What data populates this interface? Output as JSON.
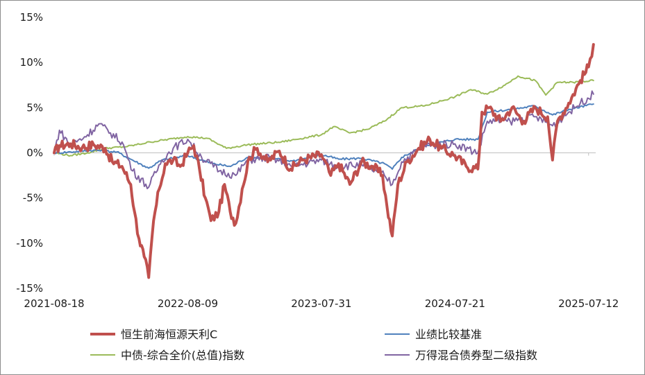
{
  "chart_data": {
    "type": "line",
    "title": "",
    "xlabel": "",
    "ylabel": "",
    "y_ticks": [
      "15%",
      "10%",
      "5%",
      "0%",
      "-5%",
      "-10%",
      "-15%"
    ],
    "y_tick_values": [
      15,
      10,
      5,
      0,
      -5,
      -10,
      -15
    ],
    "ylim": [
      -15,
      15
    ],
    "x_ticks": [
      "2021-08-18",
      "2022-08-09",
      "2023-07-31",
      "2024-07-21",
      "2025-07-12"
    ],
    "xlim": [
      "2021-08-18",
      "2025-07-31"
    ],
    "grid": false,
    "legend_position": "bottom",
    "series": [
      {
        "name": "恒生前海恒源天利C",
        "color": "#c0504d",
        "points": [
          [
            "2021-08-18",
            0.0
          ],
          [
            "2021-09-01",
            0.8
          ],
          [
            "2021-10-01",
            1.0
          ],
          [
            "2021-11-01",
            0.6
          ],
          [
            "2021-12-01",
            0.9
          ],
          [
            "2022-01-01",
            0.5
          ],
          [
            "2022-01-20",
            -1.0
          ],
          [
            "2022-02-15",
            -1.5
          ],
          [
            "2022-03-10",
            -3.5
          ],
          [
            "2022-03-20",
            -6.5
          ],
          [
            "2022-04-01",
            -9.5
          ],
          [
            "2022-04-15",
            -11.5
          ],
          [
            "2022-04-27",
            -13.8
          ],
          [
            "2022-05-10",
            -7.5
          ],
          [
            "2022-05-25",
            -4.0
          ],
          [
            "2022-06-10",
            -1.2
          ],
          [
            "2022-07-01",
            -0.8
          ],
          [
            "2022-07-20",
            -1.5
          ],
          [
            "2022-08-09",
            0.0
          ],
          [
            "2022-08-25",
            0.8
          ],
          [
            "2022-09-10",
            -2.0
          ],
          [
            "2022-09-25",
            -5.0
          ],
          [
            "2022-10-10",
            -7.5
          ],
          [
            "2022-10-31",
            -6.5
          ],
          [
            "2022-11-15",
            -3.5
          ],
          [
            "2022-11-30",
            -6.5
          ],
          [
            "2022-12-15",
            -7.8
          ],
          [
            "2023-01-01",
            -4.0
          ],
          [
            "2023-01-20",
            -0.5
          ],
          [
            "2023-02-10",
            0.5
          ],
          [
            "2023-03-10",
            -1.0
          ],
          [
            "2023-04-10",
            0.2
          ],
          [
            "2023-05-10",
            -1.8
          ],
          [
            "2023-06-10",
            -0.8
          ],
          [
            "2023-07-31",
            -0.2
          ],
          [
            "2023-08-25",
            -2.5
          ],
          [
            "2023-09-15",
            -1.2
          ],
          [
            "2023-10-15",
            -3.5
          ],
          [
            "2023-11-15",
            -1.0
          ],
          [
            "2023-12-15",
            -1.5
          ],
          [
            "2024-01-10",
            -2.5
          ],
          [
            "2024-01-22",
            -6.0
          ],
          [
            "2024-02-05",
            -9.2
          ],
          [
            "2024-02-20",
            -3.5
          ],
          [
            "2024-03-15",
            -1.0
          ],
          [
            "2024-04-15",
            0.5
          ],
          [
            "2024-05-15",
            1.5
          ],
          [
            "2024-06-15",
            0.5
          ],
          [
            "2024-07-21",
            -0.3
          ],
          [
            "2024-08-20",
            -1.5
          ],
          [
            "2024-09-20",
            -1.8
          ],
          [
            "2024-10-01",
            4.5
          ],
          [
            "2024-10-20",
            5.0
          ],
          [
            "2024-11-20",
            3.5
          ],
          [
            "2024-12-20",
            5.0
          ],
          [
            "2025-01-20",
            3.5
          ],
          [
            "2025-02-20",
            5.0
          ],
          [
            "2025-03-25",
            4.0
          ],
          [
            "2025-04-07",
            -0.8
          ],
          [
            "2025-04-20",
            3.5
          ],
          [
            "2025-05-20",
            5.5
          ],
          [
            "2025-06-20",
            8.0
          ],
          [
            "2025-07-12",
            9.5
          ],
          [
            "2025-07-25",
            12.0
          ]
        ]
      },
      {
        "name": "业绩比较基准",
        "color": "#4f81bd",
        "points": [
          [
            "2021-08-18",
            0.0
          ],
          [
            "2021-10-01",
            0.1
          ],
          [
            "2021-12-01",
            0.3
          ],
          [
            "2022-02-01",
            0.1
          ],
          [
            "2022-03-15",
            -0.8
          ],
          [
            "2022-04-27",
            -1.7
          ],
          [
            "2022-06-01",
            -0.8
          ],
          [
            "2022-08-09",
            -0.3
          ],
          [
            "2022-10-15",
            -1.2
          ],
          [
            "2022-12-01",
            -1.5
          ],
          [
            "2023-01-15",
            -0.5
          ],
          [
            "2023-03-15",
            -0.6
          ],
          [
            "2023-05-15",
            -0.9
          ],
          [
            "2023-07-31",
            -0.2
          ],
          [
            "2023-09-15",
            -0.7
          ],
          [
            "2023-11-15",
            -0.6
          ],
          [
            "2024-01-15",
            -1.2
          ],
          [
            "2024-02-05",
            -1.8
          ],
          [
            "2024-03-01",
            -0.5
          ],
          [
            "2024-05-01",
            0.8
          ],
          [
            "2024-07-21",
            1.5
          ],
          [
            "2024-09-20",
            1.5
          ],
          [
            "2024-10-15",
            4.5
          ],
          [
            "2024-12-15",
            4.8
          ],
          [
            "2025-02-20",
            5.2
          ],
          [
            "2025-04-07",
            4.2
          ],
          [
            "2025-05-20",
            4.8
          ],
          [
            "2025-07-25",
            5.4
          ]
        ]
      },
      {
        "name": "中债-综合全价(总值)指数",
        "color": "#9bbb59",
        "points": [
          [
            "2021-08-18",
            0.0
          ],
          [
            "2021-10-01",
            -0.3
          ],
          [
            "2021-11-15",
            0.0
          ],
          [
            "2022-01-01",
            0.5
          ],
          [
            "2022-03-01",
            0.7
          ],
          [
            "2022-05-01",
            1.2
          ],
          [
            "2022-08-09",
            1.8
          ],
          [
            "2022-10-01",
            1.6
          ],
          [
            "2022-11-20",
            0.5
          ],
          [
            "2023-01-15",
            0.9
          ],
          [
            "2023-04-15",
            1.2
          ],
          [
            "2023-07-31",
            2.0
          ],
          [
            "2023-09-01",
            2.9
          ],
          [
            "2023-10-15",
            2.2
          ],
          [
            "2023-12-01",
            2.6
          ],
          [
            "2024-01-15",
            3.5
          ],
          [
            "2024-03-01",
            5.0
          ],
          [
            "2024-05-01",
            5.2
          ],
          [
            "2024-07-21",
            6.2
          ],
          [
            "2024-09-01",
            7.0
          ],
          [
            "2024-10-15",
            6.5
          ],
          [
            "2024-12-01",
            7.5
          ],
          [
            "2025-01-05",
            8.5
          ],
          [
            "2025-02-20",
            8.0
          ],
          [
            "2025-03-20",
            6.4
          ],
          [
            "2025-04-20",
            7.8
          ],
          [
            "2025-06-01",
            7.8
          ],
          [
            "2025-07-25",
            8.0
          ]
        ]
      },
      {
        "name": "万得混合债券型二级指数",
        "color": "#8064a2",
        "points": [
          [
            "2021-08-18",
            0.0
          ],
          [
            "2021-09-01",
            2.5
          ],
          [
            "2021-10-01",
            0.8
          ],
          [
            "2021-11-15",
            2.0
          ],
          [
            "2021-12-15",
            3.2
          ],
          [
            "2022-01-15",
            2.2
          ],
          [
            "2022-02-15",
            1.2
          ],
          [
            "2022-03-15",
            -2.0
          ],
          [
            "2022-04-27",
            -3.8
          ],
          [
            "2022-06-01",
            -0.8
          ],
          [
            "2022-07-01",
            0.5
          ],
          [
            "2022-08-09",
            1.5
          ],
          [
            "2022-09-15",
            -0.5
          ],
          [
            "2022-11-01",
            -2.0
          ],
          [
            "2022-12-15",
            -2.5
          ],
          [
            "2023-01-15",
            -0.8
          ],
          [
            "2023-03-15",
            -0.5
          ],
          [
            "2023-05-15",
            -1.5
          ],
          [
            "2023-07-31",
            -0.8
          ],
          [
            "2023-09-15",
            -1.5
          ],
          [
            "2023-11-15",
            -1.3
          ],
          [
            "2024-01-15",
            -2.5
          ],
          [
            "2024-02-05",
            -3.5
          ],
          [
            "2024-03-01",
            -1.0
          ],
          [
            "2024-05-01",
            0.8
          ],
          [
            "2024-07-21",
            1.0
          ],
          [
            "2024-09-20",
            0.0
          ],
          [
            "2024-10-15",
            3.5
          ],
          [
            "2024-12-15",
            3.5
          ],
          [
            "2025-02-20",
            4.0
          ],
          [
            "2025-04-07",
            3.0
          ],
          [
            "2025-05-20",
            4.5
          ],
          [
            "2025-06-20",
            5.5
          ],
          [
            "2025-07-25",
            6.5
          ]
        ]
      }
    ]
  },
  "legend": {
    "items": [
      {
        "label": "恒生前海恒源天利C",
        "color": "#c0504d",
        "width": 4
      },
      {
        "label": "业绩比较基准",
        "color": "#4f81bd",
        "width": 2
      },
      {
        "label": "中债-综合全价(总值)指数",
        "color": "#9bbb59",
        "width": 2
      },
      {
        "label": "万得混合债券型二级指数",
        "color": "#8064a2",
        "width": 2
      }
    ]
  }
}
